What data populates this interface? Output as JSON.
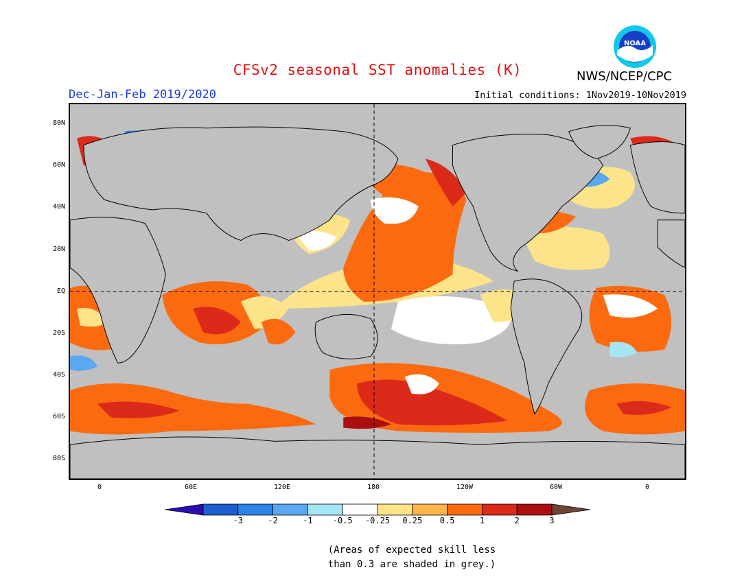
{
  "header": {
    "title": "CFSv2 seasonal SST anomalies (K)",
    "agency": "NWS/NCEP/CPC",
    "season": "Dec-Jan-Feb 2019/2020",
    "initial_conditions": "Initial conditions: 1Nov2019-10Nov2019",
    "logo_text": "NOAA"
  },
  "map": {
    "lat_labels": [
      "80N",
      "60N",
      "40N",
      "20N",
      "EQ",
      "20S",
      "40S",
      "60S",
      "80S"
    ],
    "lon_labels": [
      "0",
      "60E",
      "120E",
      "180",
      "120W",
      "60W",
      "0"
    ],
    "land_color": "#c0c0c0",
    "reference_lines": [
      "EQ",
      "180"
    ]
  },
  "colorbar": {
    "tick_labels": [
      "-3",
      "-2",
      "-1",
      "-0.5",
      "-0.25",
      "0.25",
      "0.5",
      "1",
      "2",
      "3"
    ],
    "colors": [
      "#2b0cb0",
      "#1c5fd0",
      "#2c86e8",
      "#5aa8f0",
      "#a6e6f4",
      "#ffffff",
      "#fde48a",
      "#fdb54c",
      "#fc6a10",
      "#dc2a1a",
      "#ac0f0f",
      "#6e4436"
    ]
  },
  "note": {
    "line1": "(Areas of expected skill less",
    "line2": "than 0.3 are shaded in grey.)"
  }
}
